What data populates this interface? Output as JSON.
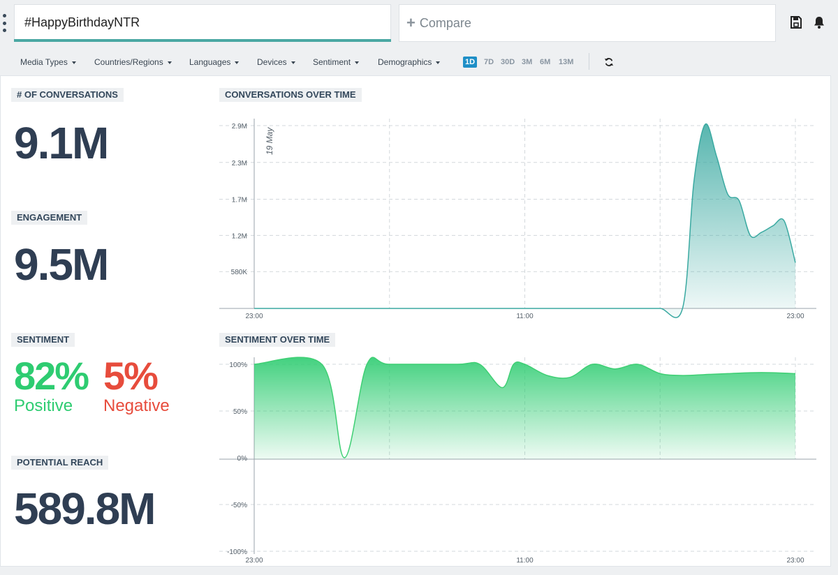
{
  "search": {
    "query": "#HappyBirthdayNTR"
  },
  "compare": {
    "label": "Compare"
  },
  "toolbar": {
    "save_icon": "save-icon",
    "notification_icon": "bell-icon"
  },
  "filters": [
    {
      "label": "Media Types"
    },
    {
      "label": "Countries/Regions"
    },
    {
      "label": "Languages"
    },
    {
      "label": "Devices"
    },
    {
      "label": "Sentiment"
    },
    {
      "label": "Demographics"
    }
  ],
  "time_ranges": [
    {
      "label": "1D",
      "active": true
    },
    {
      "label": "7D",
      "active": false
    },
    {
      "label": "30D",
      "active": false
    },
    {
      "label": "3M",
      "active": false
    },
    {
      "label": "6M",
      "active": false
    },
    {
      "label": "13M",
      "active": false
    }
  ],
  "metrics": {
    "conversations": {
      "label": "# OF CONVERSATIONS",
      "value": "9.1M"
    },
    "engagement": {
      "label": "ENGAGEMENT",
      "value": "9.5M"
    },
    "sentiment": {
      "label": "SENTIMENT",
      "positive_value": "82%",
      "positive_label": "Positive",
      "negative_value": "5%",
      "negative_label": "Negative"
    },
    "reach": {
      "label": "POTENTIAL REACH",
      "value": "589.8M"
    }
  },
  "colors": {
    "positive": "#2ecc71",
    "negative": "#e74c3c",
    "teal": "#3aa9a1",
    "accent": "#1f8fc7",
    "green_line": "#3fcf74"
  },
  "chart_data": [
    {
      "type": "area",
      "title": "CONVERSATIONS OVER TIME",
      "annotation": "19 May",
      "x": [
        23,
        24,
        25,
        26,
        27,
        28,
        29,
        30,
        31,
        32,
        33,
        34,
        35,
        36,
        37,
        38,
        39,
        40,
        41,
        42,
        42.5,
        43,
        43.5,
        44,
        44.5,
        45,
        45.5,
        46,
        46.5,
        47
      ],
      "x_ticks": [
        {
          "x": 23,
          "label": "23:00"
        },
        {
          "x": 35,
          "label": "11:00"
        },
        {
          "x": 47,
          "label": "23:00"
        }
      ],
      "values": [
        0,
        0,
        0,
        0,
        0,
        0,
        0,
        0,
        0,
        0,
        0,
        0,
        0,
        0,
        0,
        0,
        0,
        0,
        0,
        5000,
        2000000,
        2900000,
        2400000,
        1800000,
        1700000,
        1150000,
        1200000,
        1300000,
        1380000,
        720000
      ],
      "y_ticks": [
        {
          "v": 580000,
          "label": "580K"
        },
        {
          "v": 1150000,
          "label": "1.2M"
        },
        {
          "v": 1720000,
          "label": "1.7M"
        },
        {
          "v": 2300000,
          "label": "2.3M"
        },
        {
          "v": 2880000,
          "label": "2.9M"
        }
      ],
      "ylim": [
        0,
        2880000
      ],
      "grid": true
    },
    {
      "type": "area",
      "title": "SENTIMENT OVER TIME",
      "x": [
        23,
        26,
        27,
        28,
        29,
        32,
        33,
        34,
        34.5,
        35,
        36,
        37,
        38,
        39,
        40,
        41,
        42,
        43,
        44,
        45,
        46,
        47
      ],
      "x_ticks": [
        {
          "x": 23,
          "label": "23:00"
        },
        {
          "x": 35,
          "label": "11:00"
        },
        {
          "x": 47,
          "label": "23:00"
        }
      ],
      "values": [
        100,
        100,
        0,
        100,
        100,
        100,
        100,
        75,
        100,
        100,
        88,
        86,
        100,
        95,
        100,
        90,
        88,
        89,
        90,
        91,
        91,
        90
      ],
      "y_ticks": [
        {
          "v": 100,
          "label": "100%"
        },
        {
          "v": 50,
          "label": "50%"
        },
        {
          "v": 0,
          "label": "0%"
        },
        {
          "v": -50,
          "label": "-50%"
        },
        {
          "v": -100,
          "label": "-100%"
        }
      ],
      "ylim": [
        -100,
        100
      ],
      "grid": true
    }
  ]
}
